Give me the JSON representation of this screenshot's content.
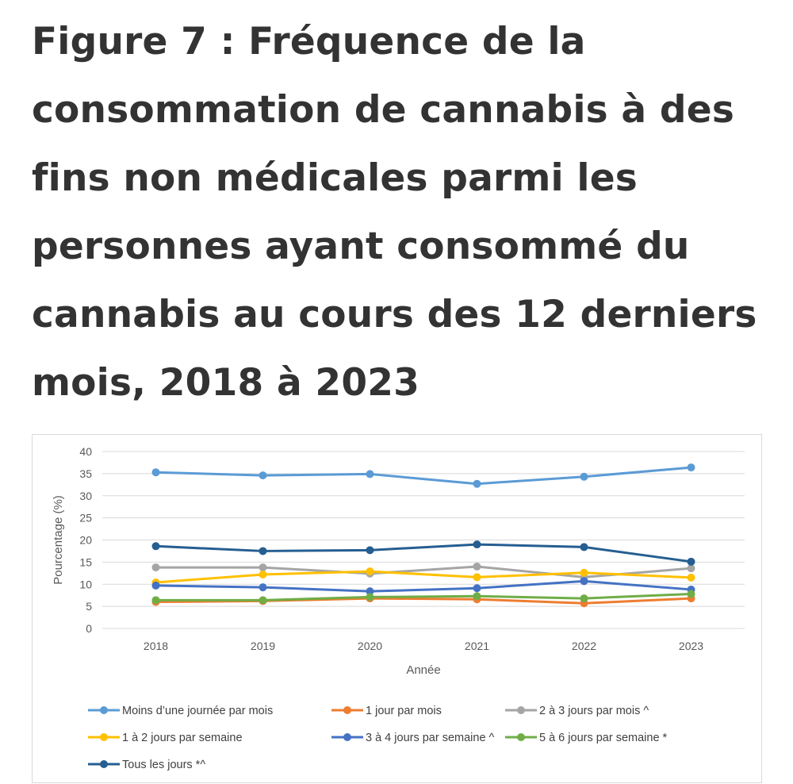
{
  "page": {
    "title": "Figure 7 : Fréquence de la consommation de cannabis à des fins non médicales parmi les personnes ayant consommé du cannabis au cours des 12 derniers mois, 2018 à 2023"
  },
  "chart_data": {
    "type": "line",
    "title": "",
    "xlabel": "Année",
    "ylabel": "Pourcentage (%)",
    "categories": [
      "2018",
      "2019",
      "2020",
      "2021",
      "2022",
      "2023"
    ],
    "ylim": [
      0,
      40
    ],
    "yticks": [
      0,
      5,
      10,
      15,
      20,
      25,
      30,
      35,
      40
    ],
    "grid": true,
    "legend_position": "bottom",
    "series": [
      {
        "name": "Moins d’une journée par mois",
        "color": "#5B9BD5",
        "values": [
          35.3,
          34.6,
          34.9,
          32.7,
          34.3,
          36.4
        ]
      },
      {
        "name": "1 jour par mois",
        "color": "#ED7D31",
        "values": [
          6.0,
          6.2,
          6.8,
          6.6,
          5.7,
          6.8
        ]
      },
      {
        "name": "2 à 3 jours par mois ^",
        "color": "#A5A5A5",
        "values": [
          13.8,
          13.8,
          12.4,
          14.0,
          11.6,
          13.6
        ]
      },
      {
        "name": "1 à 2 jours par semaine",
        "color": "#FFC000",
        "values": [
          10.4,
          12.2,
          12.9,
          11.6,
          12.6,
          11.5
        ]
      },
      {
        "name": "3 à 4 jours par semaine ^",
        "color": "#4472C4",
        "values": [
          9.7,
          9.3,
          8.4,
          9.1,
          10.7,
          8.8
        ]
      },
      {
        "name": "5 à 6 jours par semaine *",
        "color": "#70AD47",
        "values": [
          6.4,
          6.4,
          7.1,
          7.3,
          6.8,
          7.8
        ]
      },
      {
        "name": "Tous les jours *^",
        "color": "#255E91",
        "values": [
          18.6,
          17.5,
          17.7,
          19.0,
          18.4,
          15.1
        ]
      }
    ]
  }
}
